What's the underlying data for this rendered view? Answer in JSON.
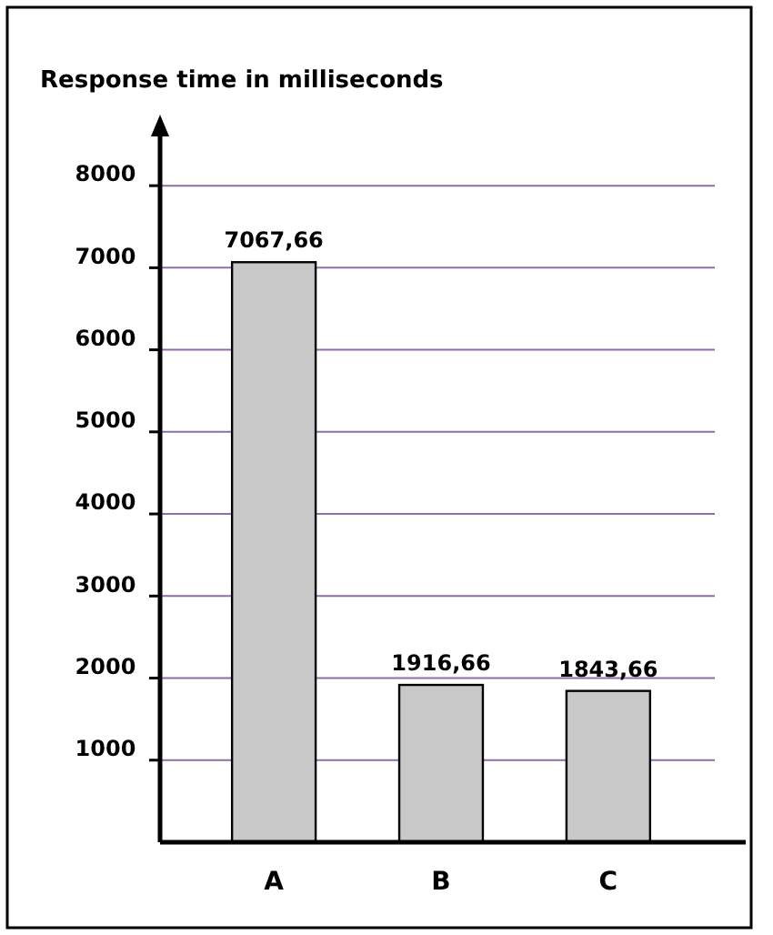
{
  "chart_data": {
    "type": "bar",
    "title": "Response time in milliseconds",
    "categories": [
      "A",
      "B",
      "C"
    ],
    "values": [
      7067.66,
      1916.66,
      1843.66
    ],
    "value_labels": [
      "7067,66",
      "1916,66",
      "1843,66"
    ],
    "color": "#c8c8c8",
    "ylim": [
      0,
      8600
    ],
    "yticks": [
      1000,
      2000,
      3000,
      4000,
      5000,
      6000,
      7000,
      8000
    ],
    "grid": "y"
  }
}
